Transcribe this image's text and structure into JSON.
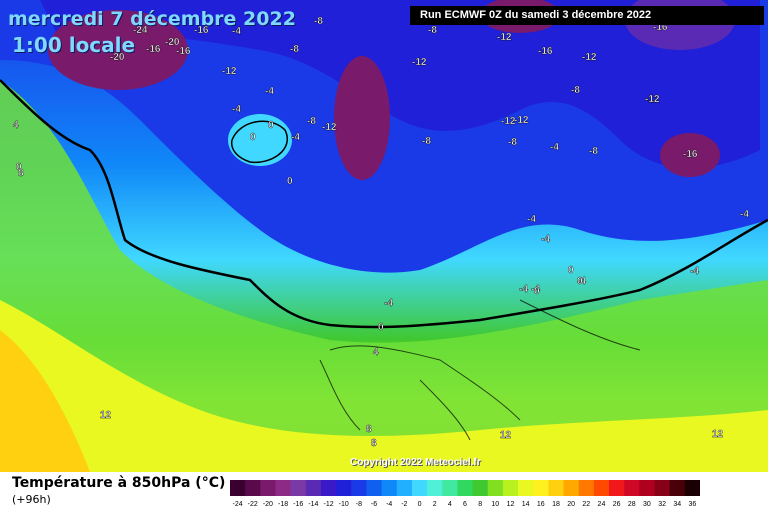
{
  "header": {
    "date_title": "mercredi 7 décembre 2022",
    "time_title": "1:00 locale",
    "run_info": "Run ECMWF 0Z du samedi 3 décembre 2022"
  },
  "footer": {
    "copyright": "Copyright 2022 Meteociel.fr",
    "legend_title": "Température à 850hPa (°C)",
    "legend_subtitle": "(+96h)"
  },
  "legend_scale": {
    "labels": [
      "-24",
      "-22",
      "-20",
      "-18",
      "-16",
      "-14",
      "-12",
      "-10",
      "-8",
      "-6",
      "-4",
      "-2",
      "0",
      "2",
      "4",
      "6",
      "8",
      "10",
      "12",
      "14",
      "16",
      "18",
      "20",
      "22",
      "24",
      "26",
      "28",
      "30",
      "32",
      "34",
      "36"
    ],
    "colors": [
      "#3a0030",
      "#5a0a4a",
      "#7a1a6a",
      "#8c2a86",
      "#7a3aa6",
      "#5a2ab4",
      "#3a1ac8",
      "#2020d8",
      "#1a3ae8",
      "#1060f0",
      "#1088f8",
      "#20b0ff",
      "#40d8ff",
      "#50f0d8",
      "#40e8a0",
      "#30d860",
      "#40c830",
      "#80e020",
      "#b8f020",
      "#e8f820",
      "#fff020",
      "#ffd010",
      "#ffa800",
      "#ff7800",
      "#ff4800",
      "#f01818",
      "#d00828",
      "#b00020",
      "#880018",
      "#4a0008",
      "#1a0004"
    ]
  },
  "map_labels": [
    {
      "text": "-24"
    },
    {
      "text": "-20"
    },
    {
      "text": "-16"
    },
    {
      "text": "-4"
    },
    {
      "text": "-16"
    },
    {
      "text": "-20"
    },
    {
      "text": "-16"
    },
    {
      "text": "-8"
    },
    {
      "text": "-12"
    },
    {
      "text": "-8"
    },
    {
      "text": "-12"
    },
    {
      "text": "-12"
    },
    {
      "text": "-16"
    },
    {
      "text": "-12"
    },
    {
      "text": "-12"
    },
    {
      "text": "-8"
    },
    {
      "text": "-4"
    },
    {
      "text": "-4"
    },
    {
      "text": "-4"
    },
    {
      "text": "0"
    },
    {
      "text": "0"
    },
    {
      "text": "0"
    },
    {
      "text": "-4"
    },
    {
      "text": "-8"
    },
    {
      "text": "-12"
    },
    {
      "text": "-16"
    },
    {
      "text": "-12"
    },
    {
      "text": "-8"
    },
    {
      "text": "-12"
    },
    {
      "text": "-8"
    },
    {
      "text": "-4"
    },
    {
      "text": "-8"
    },
    {
      "text": "-8"
    },
    {
      "text": "-12"
    },
    {
      "text": "-16"
    },
    {
      "text": "-4"
    },
    {
      "text": "-4"
    },
    {
      "text": "-4"
    },
    {
      "text": "-4"
    },
    {
      "text": "0"
    },
    {
      "text": "0"
    },
    {
      "text": "-4"
    },
    {
      "text": "-4"
    },
    {
      "text": "-4"
    },
    {
      "text": "0"
    },
    {
      "text": "0"
    },
    {
      "text": "4"
    },
    {
      "text": "8"
    },
    {
      "text": "4"
    },
    {
      "text": "12"
    },
    {
      "text": "8"
    },
    {
      "text": "8"
    },
    {
      "text": "12"
    },
    {
      "text": "12"
    },
    {
      "text": "0"
    }
  ]
}
